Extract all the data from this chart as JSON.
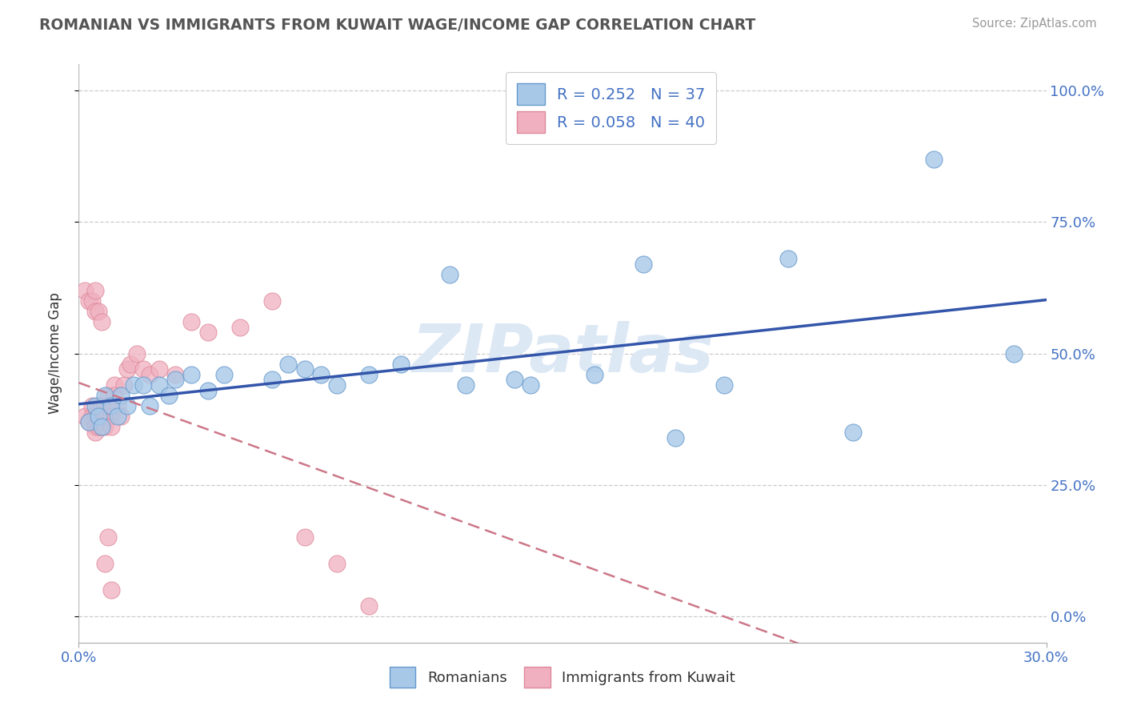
{
  "title": "ROMANIAN VS IMMIGRANTS FROM KUWAIT WAGE/INCOME GAP CORRELATION CHART",
  "source": "Source: ZipAtlas.com",
  "ylabel": "Wage/Income Gap",
  "ytick_vals": [
    0.0,
    0.25,
    0.5,
    0.75,
    1.0
  ],
  "ytick_labels": [
    "0.0%",
    "25.0%",
    "50.0%",
    "75.0%",
    "100.0%"
  ],
  "xtick_vals": [
    0.0,
    0.3
  ],
  "xtick_labels": [
    "0.0%",
    "30.0%"
  ],
  "xmin": 0.0,
  "xmax": 0.3,
  "ymin": -0.05,
  "ymax": 1.05,
  "romanian_color": "#a8c8e8",
  "romanian_edge": "#6699cc",
  "kuwait_color": "#f0b0c0",
  "kuwait_edge": "#dd8899",
  "trendline_romanian_color": "#3355aa",
  "trendline_kuwait_color": "#cc7788",
  "watermark_color": "#dde8f5",
  "legend_label1": "R = 0.252   N = 37",
  "legend_label2": "R = 0.058   N = 40",
  "romanian_x": [
    0.003,
    0.005,
    0.006,
    0.007,
    0.008,
    0.01,
    0.012,
    0.013,
    0.015,
    0.017,
    0.02,
    0.022,
    0.025,
    0.028,
    0.03,
    0.035,
    0.04,
    0.045,
    0.06,
    0.065,
    0.07,
    0.075,
    0.08,
    0.09,
    0.1,
    0.115,
    0.12,
    0.135,
    0.14,
    0.16,
    0.175,
    0.185,
    0.2,
    0.22,
    0.24,
    0.265,
    0.29
  ],
  "romanian_y": [
    0.37,
    0.4,
    0.38,
    0.36,
    0.42,
    0.4,
    0.38,
    0.42,
    0.4,
    0.44,
    0.44,
    0.4,
    0.44,
    0.42,
    0.45,
    0.46,
    0.43,
    0.46,
    0.45,
    0.48,
    0.47,
    0.46,
    0.44,
    0.46,
    0.48,
    0.65,
    0.44,
    0.45,
    0.44,
    0.46,
    0.67,
    0.34,
    0.44,
    0.68,
    0.35,
    0.87,
    0.5
  ],
  "kuwait_x": [
    0.002,
    0.003,
    0.004,
    0.004,
    0.005,
    0.005,
    0.005,
    0.006,
    0.006,
    0.006,
    0.007,
    0.007,
    0.007,
    0.008,
    0.008,
    0.008,
    0.009,
    0.009,
    0.01,
    0.01,
    0.01,
    0.011,
    0.011,
    0.012,
    0.013,
    0.014,
    0.015,
    0.016,
    0.018,
    0.02,
    0.022,
    0.025,
    0.03,
    0.035,
    0.04,
    0.05,
    0.06,
    0.07,
    0.08,
    0.09
  ],
  "kuwait_y": [
    0.38,
    0.37,
    0.4,
    0.38,
    0.38,
    0.36,
    0.35,
    0.4,
    0.38,
    0.36,
    0.4,
    0.38,
    0.36,
    0.4,
    0.38,
    0.36,
    0.42,
    0.4,
    0.4,
    0.38,
    0.36,
    0.44,
    0.42,
    0.4,
    0.38,
    0.44,
    0.47,
    0.48,
    0.5,
    0.47,
    0.46,
    0.47,
    0.46,
    0.56,
    0.54,
    0.55,
    0.6,
    0.15,
    0.1,
    0.02
  ],
  "kuwait_outliers_x": [
    0.002,
    0.003,
    0.004,
    0.005,
    0.005,
    0.006,
    0.007,
    0.008,
    0.009,
    0.01
  ],
  "kuwait_outliers_y": [
    0.62,
    0.6,
    0.6,
    0.62,
    0.58,
    0.58,
    0.56,
    0.1,
    0.15,
    0.05
  ]
}
